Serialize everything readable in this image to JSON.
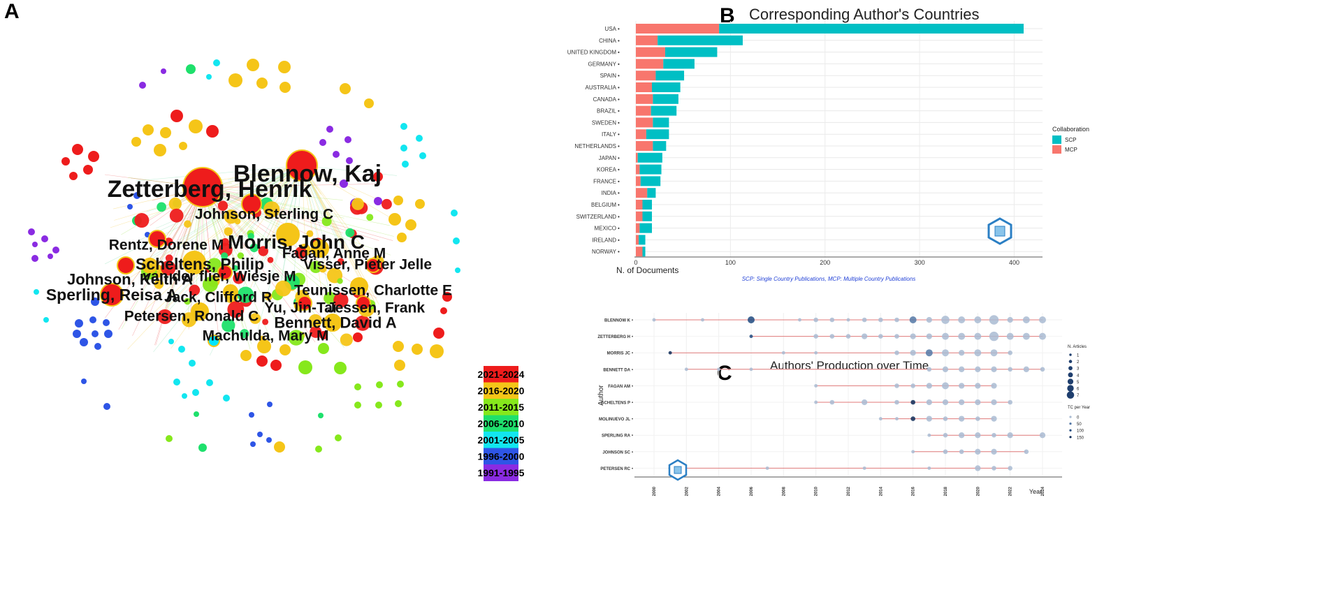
{
  "panels": {
    "a": "A",
    "b": "B",
    "c": "C"
  },
  "network": {
    "nodes": [
      {
        "label": "Blennow, Kaj",
        "color": "#ee1c1c"
      },
      {
        "label": "Zetterberg, Henrik",
        "color": "#ee1c1c"
      },
      {
        "label": "Johnson, Sterling C",
        "color": "#ee1c1c"
      },
      {
        "label": "Morris, John C",
        "color": "#f5c518"
      },
      {
        "label": "Rentz, Dorene M",
        "color": "#ee1c1c"
      },
      {
        "label": "Fagan, Anne M",
        "color": "#f5c518"
      },
      {
        "label": "Scheltens, Philip",
        "color": "#f5c518"
      },
      {
        "label": "Visser, Pieter Jelle",
        "color": "#ee1c1c"
      },
      {
        "label": "van der flier, Wiesje M",
        "color": "#ee1c1c"
      },
      {
        "label": "Johnson, Keith A",
        "color": "#ee1c1c"
      },
      {
        "label": "Teunissen, Charlotte E",
        "color": "#f5c518"
      },
      {
        "label": "Sperling, Reisa A",
        "color": "#ee1c1c"
      },
      {
        "label": "Jack, Clifford R",
        "color": "#f5c518"
      },
      {
        "label": "Yu, Jin-Tai",
        "color": "#ee1c1c"
      },
      {
        "label": "Jessen, Frank",
        "color": "#ee1c1c"
      },
      {
        "label": "Petersen, Ronald C",
        "color": "#f5c518"
      },
      {
        "label": "Bennett, David A",
        "color": "#f5c518"
      },
      {
        "label": "Machulda, Mary M",
        "color": "#00e5ff"
      }
    ],
    "legend": [
      {
        "label": "2021-2024",
        "color": "#ee1c1c"
      },
      {
        "label": "2016-2020",
        "color": "#f5c518"
      },
      {
        "label": "2011-2015",
        "color": "#86e81c"
      },
      {
        "label": "2006-2010",
        "color": "#1ee06c"
      },
      {
        "label": "2001-2005",
        "color": "#12e6f0"
      },
      {
        "label": "1996-2000",
        "color": "#2e55e6"
      },
      {
        "label": "1991-1995",
        "color": "#8a2be2"
      }
    ]
  },
  "chart_data": [
    {
      "type": "bar",
      "orientation": "horizontal",
      "stacked": true,
      "title": "Corresponding Author's Countries",
      "xlabel": "N. of Documents",
      "ylabel": "",
      "xlim": [
        0,
        430
      ],
      "xticks": [
        0,
        100,
        200,
        300,
        400
      ],
      "categories": [
        "USA",
        "CHINA",
        "UNITED KINGDOM",
        "GERMANY",
        "SPAIN",
        "AUSTRALIA",
        "CANADA",
        "BRAZIL",
        "SWEDEN",
        "ITALY",
        "NETHERLANDS",
        "JAPAN",
        "KOREA",
        "FRANCE",
        "INDIA",
        "BELGIUM",
        "SWITZERLAND",
        "MEXICO",
        "IRELAND",
        "NORWAY"
      ],
      "series": [
        {
          "name": "MCP",
          "color": "#f8766d",
          "values": [
            88,
            23,
            31,
            29,
            21,
            17,
            18,
            16,
            18,
            11,
            18,
            2,
            4,
            5,
            12,
            7,
            7,
            4,
            3,
            7
          ]
        },
        {
          "name": "SCP",
          "color": "#00bfc4",
          "values": [
            322,
            90,
            55,
            33,
            30,
            30,
            27,
            27,
            17,
            24,
            14,
            26,
            23,
            21,
            9,
            10,
            10,
            13,
            7,
            3
          ]
        }
      ],
      "legend": {
        "title": "Collaboration",
        "entries": [
          "SCP",
          "MCP"
        ],
        "position": "right"
      },
      "caption": "SCP: Single Country Publications, MCP: Multiple Country Publications"
    },
    {
      "type": "scatter",
      "title": "Authors' Production over Time",
      "xlabel": "Year",
      "ylabel": "Author",
      "xlim": [
        1999,
        2025
      ],
      "xticks": [
        2000,
        2002,
        2004,
        2006,
        2008,
        2010,
        2012,
        2014,
        2016,
        2018,
        2020,
        2022,
        2024
      ],
      "authors": [
        {
          "name": "BLENNOW K",
          "span": [
            2000,
            2024
          ],
          "points": [
            [
              2000,
              1,
              10
            ],
            [
              2003,
              1,
              10
            ],
            [
              2006,
              4,
              100
            ],
            [
              2009,
              1,
              10
            ],
            [
              2010,
              2,
              20
            ],
            [
              2011,
              2,
              20
            ],
            [
              2012,
              1,
              10
            ],
            [
              2013,
              2,
              20
            ],
            [
              2014,
              2,
              20
            ],
            [
              2015,
              2,
              20
            ],
            [
              2016,
              4,
              80
            ],
            [
              2017,
              3,
              30
            ],
            [
              2018,
              5,
              40
            ],
            [
              2019,
              4,
              40
            ],
            [
              2020,
              4,
              40
            ],
            [
              2021,
              6,
              40
            ],
            [
              2022,
              3,
              30
            ],
            [
              2023,
              4,
              40
            ],
            [
              2024,
              4,
              30
            ]
          ]
        },
        {
          "name": "ZETTERBERG H",
          "span": [
            2006,
            2024
          ],
          "points": [
            [
              2006,
              1,
              100
            ],
            [
              2010,
              2,
              20
            ],
            [
              2011,
              2,
              20
            ],
            [
              2012,
              2,
              20
            ],
            [
              2013,
              3,
              20
            ],
            [
              2014,
              2,
              20
            ],
            [
              2015,
              2,
              20
            ],
            [
              2016,
              3,
              30
            ],
            [
              2017,
              3,
              30
            ],
            [
              2018,
              4,
              40
            ],
            [
              2019,
              4,
              40
            ],
            [
              2020,
              4,
              40
            ],
            [
              2021,
              6,
              40
            ],
            [
              2022,
              4,
              40
            ],
            [
              2023,
              4,
              40
            ],
            [
              2024,
              4,
              30
            ]
          ]
        },
        {
          "name": "MORRIS JC",
          "span": [
            2001,
            2022
          ],
          "points": [
            [
              2001,
              1,
              150
            ],
            [
              2008,
              1,
              10
            ],
            [
              2010,
              1,
              10
            ],
            [
              2015,
              2,
              20
            ],
            [
              2016,
              3,
              30
            ],
            [
              2017,
              4,
              50
            ],
            [
              2018,
              4,
              40
            ],
            [
              2019,
              3,
              30
            ],
            [
              2020,
              4,
              40
            ],
            [
              2021,
              4,
              40
            ],
            [
              2022,
              2,
              20
            ]
          ]
        },
        {
          "name": "BENNETT DA",
          "span": [
            2002,
            2024
          ],
          "points": [
            [
              2002,
              1,
              10
            ],
            [
              2004,
              1,
              10
            ],
            [
              2006,
              1,
              10
            ],
            [
              2017,
              2,
              20
            ],
            [
              2018,
              3,
              30
            ],
            [
              2019,
              3,
              30
            ],
            [
              2020,
              3,
              30
            ],
            [
              2021,
              3,
              30
            ],
            [
              2022,
              2,
              20
            ],
            [
              2023,
              3,
              30
            ],
            [
              2024,
              2,
              20
            ]
          ]
        },
        {
          "name": "FAGAN AM",
          "span": [
            2010,
            2021
          ],
          "points": [
            [
              2010,
              1,
              10
            ],
            [
              2015,
              2,
              20
            ],
            [
              2016,
              2,
              20
            ],
            [
              2017,
              3,
              30
            ],
            [
              2018,
              4,
              40
            ],
            [
              2019,
              3,
              30
            ],
            [
              2020,
              3,
              30
            ],
            [
              2021,
              3,
              30
            ]
          ]
        },
        {
          "name": "SCHELTENS P",
          "span": [
            2010,
            2022
          ],
          "points": [
            [
              2010,
              1,
              10
            ],
            [
              2011,
              2,
              20
            ],
            [
              2013,
              3,
              30
            ],
            [
              2015,
              2,
              20
            ],
            [
              2016,
              2,
              150
            ],
            [
              2017,
              3,
              30
            ],
            [
              2018,
              3,
              30
            ],
            [
              2019,
              3,
              30
            ],
            [
              2020,
              3,
              30
            ],
            [
              2021,
              3,
              30
            ],
            [
              2022,
              2,
              20
            ]
          ]
        },
        {
          "name": "MOLINUEVO JL",
          "span": [
            2014,
            2021
          ],
          "points": [
            [
              2014,
              1,
              10
            ],
            [
              2015,
              1,
              10
            ],
            [
              2016,
              2,
              150
            ],
            [
              2017,
              3,
              30
            ],
            [
              2018,
              2,
              20
            ],
            [
              2019,
              3,
              30
            ],
            [
              2020,
              2,
              20
            ],
            [
              2021,
              3,
              30
            ]
          ]
        },
        {
          "name": "SPERLING RA",
          "span": [
            2017,
            2024
          ],
          "points": [
            [
              2017,
              1,
              10
            ],
            [
              2018,
              2,
              20
            ],
            [
              2019,
              3,
              30
            ],
            [
              2020,
              3,
              30
            ],
            [
              2021,
              2,
              20
            ],
            [
              2022,
              3,
              30
            ],
            [
              2024,
              3,
              30
            ]
          ]
        },
        {
          "name": "JOHNSON SC",
          "span": [
            2016,
            2023
          ],
          "points": [
            [
              2016,
              1,
              10
            ],
            [
              2018,
              2,
              20
            ],
            [
              2019,
              2,
              20
            ],
            [
              2020,
              3,
              30
            ],
            [
              2021,
              3,
              30
            ],
            [
              2023,
              2,
              20
            ]
          ]
        },
        {
          "name": "PETERSEN RC",
          "span": [
            2001,
            2022
          ],
          "points": [
            [
              2001,
              1,
              150
            ],
            [
              2007,
              1,
              10
            ],
            [
              2013,
              1,
              10
            ],
            [
              2017,
              1,
              10
            ],
            [
              2020,
              3,
              30
            ],
            [
              2021,
              2,
              20
            ],
            [
              2022,
              2,
              20
            ]
          ]
        }
      ],
      "size_legend": {
        "title": "N. Articles",
        "values": [
          1,
          2,
          3,
          4,
          5,
          6,
          7
        ]
      },
      "color_legend": {
        "title": "TC per Year",
        "values": [
          0,
          50,
          100,
          150
        ]
      }
    }
  ]
}
